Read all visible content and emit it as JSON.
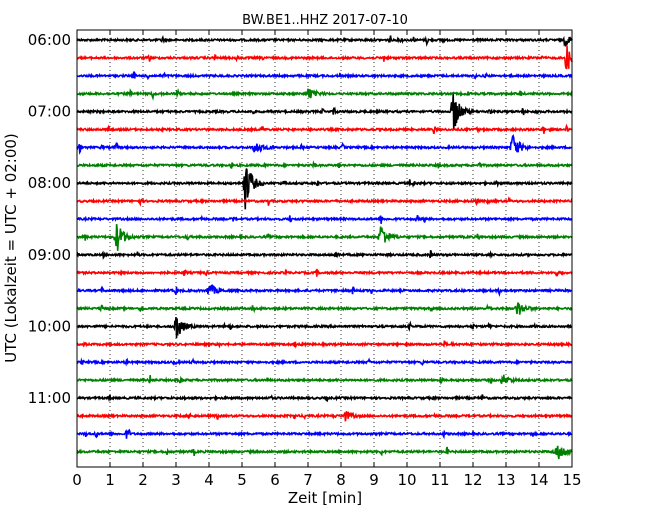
{
  "chart_data": {
    "type": "line",
    "title": "BW.BE1..HHZ 2017-07-10",
    "xlabel": "Zeit  [min]",
    "ylabel": "UTC (Lokalzeit = UTC + 02:00)",
    "xlim": [
      0,
      15
    ],
    "x_ticks": [
      "0",
      "1",
      "2",
      "3",
      "4",
      "5",
      "6",
      "7",
      "8",
      "9",
      "10",
      "11",
      "12",
      "13",
      "14",
      "15"
    ],
    "y_ticks": [
      "06:00",
      "07:00",
      "08:00",
      "09:00",
      "10:00",
      "11:00"
    ],
    "grid": "vertical dotted",
    "trace_colors": [
      "#000000",
      "#ff0000",
      "#0000ff",
      "#008000"
    ],
    "trace_start_times": [
      "06:00",
      "06:15",
      "06:30",
      "06:45",
      "07:00",
      "07:15",
      "07:30",
      "07:45",
      "08:00",
      "08:15",
      "08:30",
      "08:45",
      "09:00",
      "09:15",
      "09:30",
      "09:45",
      "10:00",
      "10:15",
      "10:30",
      "10:45",
      "11:00",
      "11:15",
      "11:30",
      "11:45"
    ],
    "events": [
      {
        "trace": 0,
        "t": 14.8,
        "amp": 0.3
      },
      {
        "trace": 1,
        "t": 14.85,
        "amp": 1.2
      },
      {
        "trace": 3,
        "t": 7.0,
        "amp": 0.4
      },
      {
        "trace": 4,
        "t": 11.4,
        "amp": 1.4
      },
      {
        "trace": 6,
        "t": 5.4,
        "amp": 0.5
      },
      {
        "trace": 6,
        "t": 13.2,
        "amp": 0.9
      },
      {
        "trace": 8,
        "t": 5.1,
        "amp": 1.6
      },
      {
        "trace": 11,
        "t": 1.2,
        "amp": 1.0
      },
      {
        "trace": 11,
        "t": 9.2,
        "amp": 0.9
      },
      {
        "trace": 14,
        "t": 4.0,
        "amp": 0.5
      },
      {
        "trace": 15,
        "t": 13.35,
        "amp": 0.5
      },
      {
        "trace": 16,
        "t": 3.0,
        "amp": 0.9
      },
      {
        "trace": 19,
        "t": 12.9,
        "amp": 0.35
      },
      {
        "trace": 21,
        "t": 8.1,
        "amp": 0.35
      },
      {
        "trace": 23,
        "t": 14.6,
        "amp": 0.55
      }
    ]
  }
}
